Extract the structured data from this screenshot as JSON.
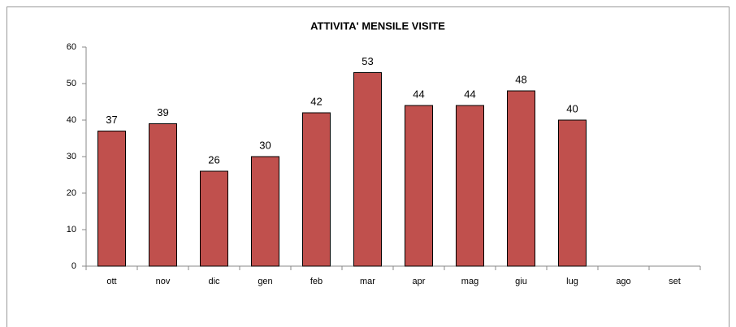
{
  "chart_data": {
    "type": "bar",
    "title": "ATTIVITA' MENSILE VISITE",
    "categories": [
      "ott",
      "nov",
      "dic",
      "gen",
      "feb",
      "mar",
      "apr",
      "mag",
      "giu",
      "lug",
      "ago",
      "set"
    ],
    "values": [
      37,
      39,
      26,
      30,
      42,
      53,
      44,
      44,
      48,
      40,
      null,
      null
    ],
    "color": "#c0504d",
    "ylim": [
      0,
      60
    ],
    "yticks": [
      0,
      10,
      20,
      30,
      40,
      50,
      60
    ],
    "grid": false,
    "data_labels": true
  }
}
